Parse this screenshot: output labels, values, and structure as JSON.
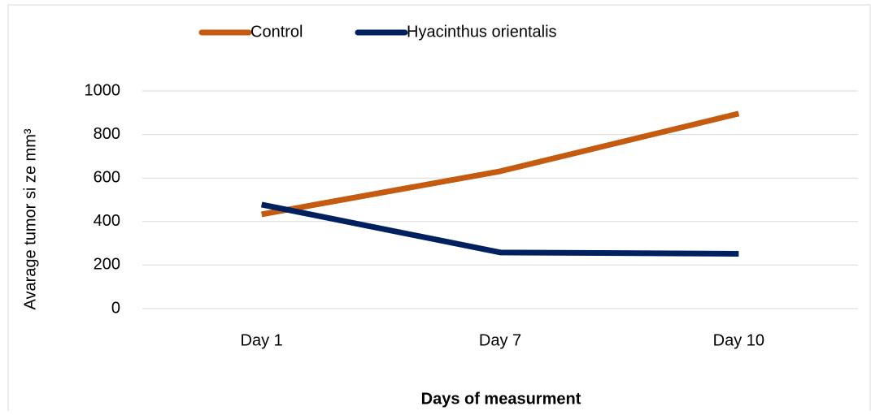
{
  "chart_data": {
    "type": "line",
    "x_label": "Days of measurment",
    "y_label": "Avarage tumor si ze mm³",
    "categories": [
      "Day 1",
      "Day 7",
      "Day 10"
    ],
    "series": [
      {
        "name": "Control",
        "color": "#c55a11",
        "values": [
          433,
          631,
          896
        ]
      },
      {
        "name": "Hyacinthus orientalis",
        "color": "#002060",
        "values": [
          478,
          258,
          252
        ]
      }
    ],
    "ylim": [
      0,
      1000
    ],
    "yticks": [
      0,
      200,
      400,
      600,
      800,
      1000
    ],
    "grid": true,
    "legend": "top"
  }
}
